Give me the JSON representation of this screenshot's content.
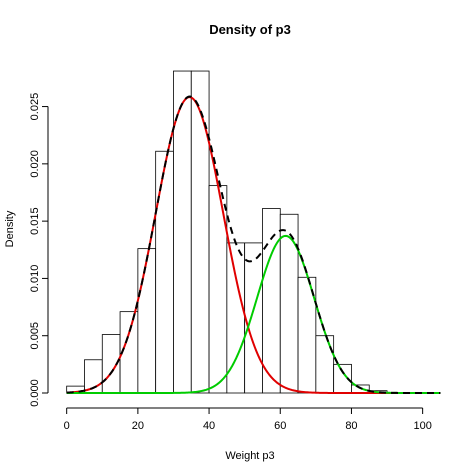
{
  "chart_data": {
    "type": "histogram",
    "title": "Density of p3",
    "xlabel": "Weight p3",
    "ylabel": "Density",
    "xlim": [
      -3,
      106
    ],
    "ylim": [
      0,
      0.0295
    ],
    "xticks": [
      0,
      20,
      40,
      60,
      80,
      100
    ],
    "yticks": [
      0.0,
      0.005,
      0.01,
      0.015,
      0.02,
      0.025
    ],
    "ytick_labels": [
      "0.000",
      "0.005",
      "0.010",
      "0.015",
      "0.020",
      "0.025"
    ],
    "bins": [
      {
        "start": 0,
        "end": 5,
        "density": 0.0006
      },
      {
        "start": 5,
        "end": 10,
        "density": 0.0029
      },
      {
        "start": 10,
        "end": 15,
        "density": 0.0051
      },
      {
        "start": 15,
        "end": 20,
        "density": 0.0071
      },
      {
        "start": 20,
        "end": 25,
        "density": 0.0126
      },
      {
        "start": 25,
        "end": 30,
        "density": 0.0211
      },
      {
        "start": 30,
        "end": 35,
        "density": 0.0281
      },
      {
        "start": 35,
        "end": 40,
        "density": 0.0281
      },
      {
        "start": 40,
        "end": 45,
        "density": 0.0181
      },
      {
        "start": 45,
        "end": 50,
        "density": 0.0131
      },
      {
        "start": 50,
        "end": 55,
        "density": 0.0131
      },
      {
        "start": 55,
        "end": 60,
        "density": 0.0161
      },
      {
        "start": 60,
        "end": 65,
        "density": 0.0156
      },
      {
        "start": 65,
        "end": 70,
        "density": 0.0101
      },
      {
        "start": 70,
        "end": 75,
        "density": 0.005
      },
      {
        "start": 75,
        "end": 80,
        "density": 0.0025
      },
      {
        "start": 80,
        "end": 85,
        "density": 0.0007
      },
      {
        "start": 85,
        "end": 90,
        "density": 0.0002
      }
    ],
    "curves": [
      {
        "style": "solid",
        "color": "#e00000",
        "mean": 34.5,
        "sd": 9.5,
        "weight": 0.615
      },
      {
        "style": "solid",
        "color": "#00cc00",
        "mean": 61.5,
        "sd": 8.0,
        "weight": 0.275
      },
      {
        "style": "dashed",
        "color": "#000000",
        "components": [
          {
            "mean": 34.5,
            "sd": 9.5,
            "weight": 0.615
          },
          {
            "mean": 61.5,
            "sd": 8.0,
            "weight": 0.275
          }
        ]
      }
    ],
    "curve_range": [
      0,
      105
    ]
  }
}
